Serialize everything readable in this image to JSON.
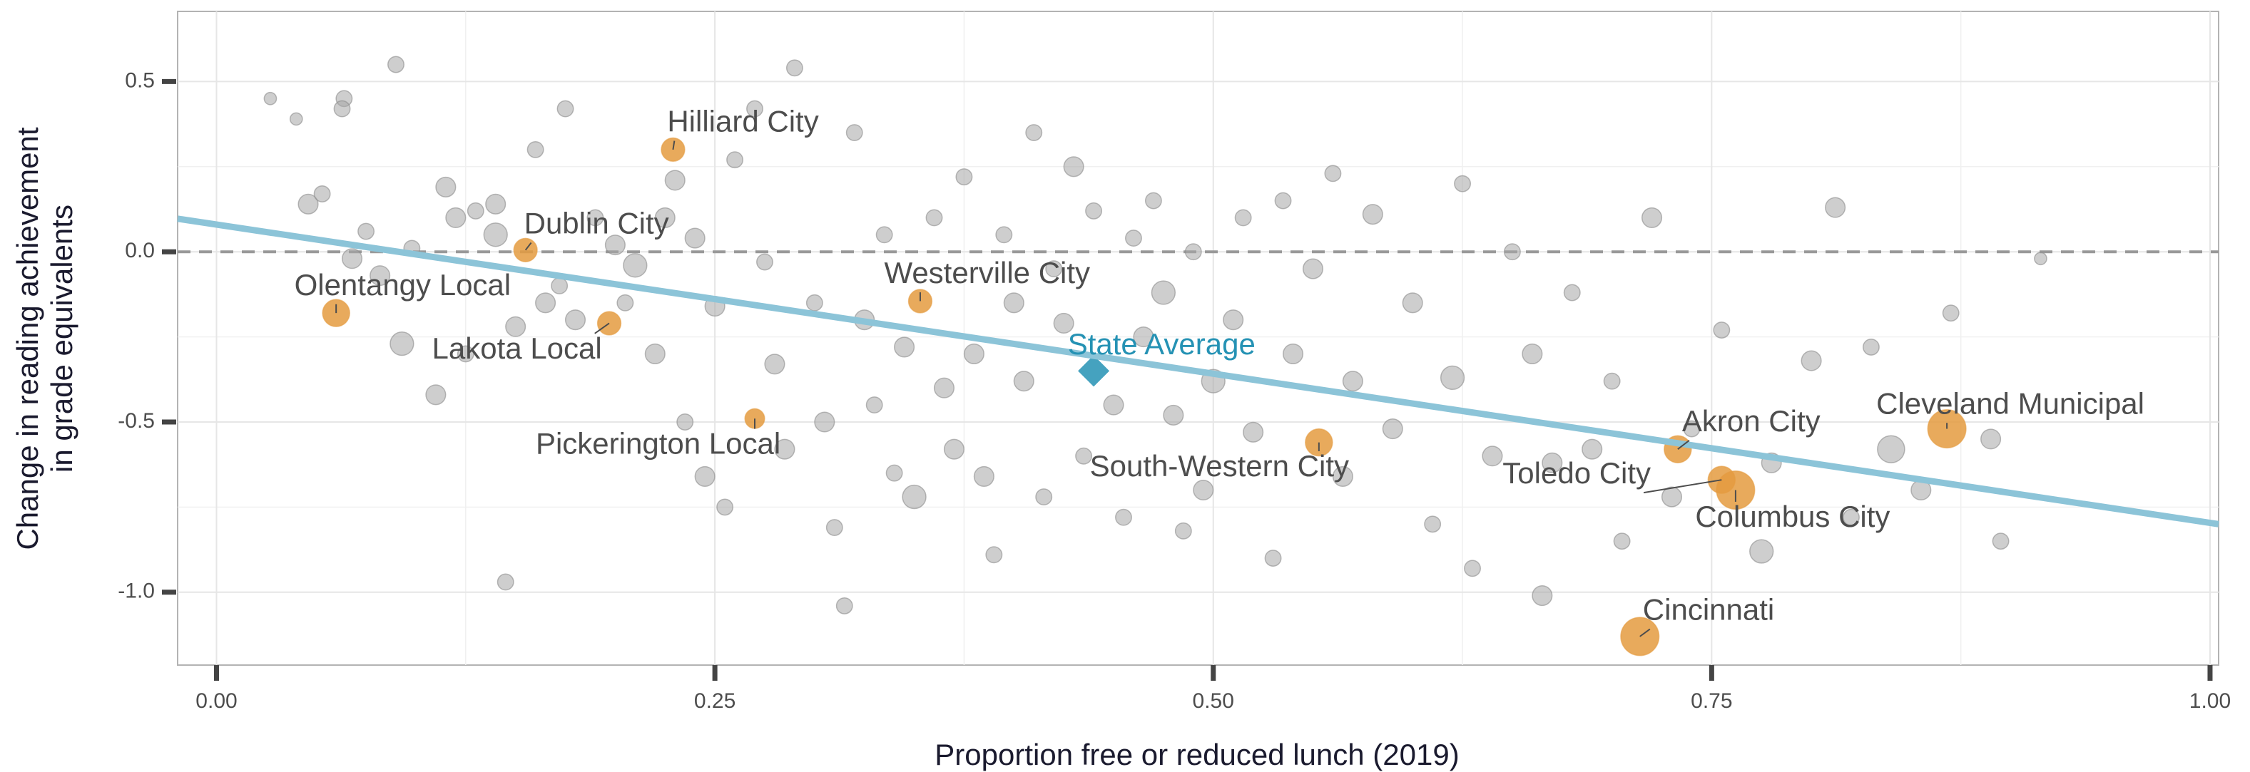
{
  "chart_data": {
    "type": "scatter",
    "xlabel": "Proportion free or reduced lunch (2019)",
    "ylabel": [
      "Change in reading  achievement",
      "in grade equivalents"
    ],
    "xlim": [
      -0.0195,
      1.0043
    ],
    "ylim": [
      -1.214,
      0.706
    ],
    "xticks": [
      {
        "value": 0,
        "label": "0.00"
      },
      {
        "value": 0.25,
        "label": "0.25"
      },
      {
        "value": 0.5,
        "label": "0.50"
      },
      {
        "value": 0.75,
        "label": "0.75"
      },
      {
        "value": 1,
        "label": "1.00"
      }
    ],
    "yticks": [
      0.5,
      {
        "value": 0,
        "label": "0.0"
      },
      -0.5,
      {
        "value": -1,
        "label": "-1.0"
      }
    ],
    "x_minor_ticks": [
      0.125,
      0.375,
      0.625,
      0.875
    ],
    "y_minor_ticks": [
      0.25,
      -0.25,
      -0.75
    ],
    "grid": true,
    "hline": {
      "y": 0,
      "color": "#999999"
    },
    "trend": {
      "color": "#8cc4d8",
      "x": [
        -0.0195,
        1.0043
      ],
      "y": [
        0.097,
        -0.8
      ]
    },
    "series": [
      {
        "color": "#a6a6a6",
        "marker": "circle",
        "x": [
          0.027,
          0.04,
          0.046,
          0.053,
          0.064,
          0.063,
          0.068,
          0.075,
          0.082,
          0.09,
          0.093,
          0.098,
          0.11,
          0.115,
          0.12,
          0.125,
          0.13,
          0.14,
          0.14,
          0.145,
          0.15,
          0.16,
          0.165,
          0.172,
          0.175,
          0.18,
          0.19,
          0.2,
          0.205,
          0.21,
          0.22,
          0.225,
          0.23,
          0.235,
          0.24,
          0.245,
          0.25,
          0.255,
          0.26,
          0.27,
          0.275,
          0.28,
          0.285,
          0.29,
          0.3,
          0.305,
          0.31,
          0.315,
          0.32,
          0.325,
          0.33,
          0.335,
          0.34,
          0.345,
          0.35,
          0.36,
          0.365,
          0.37,
          0.375,
          0.38,
          0.385,
          0.39,
          0.395,
          0.4,
          0.405,
          0.41,
          0.415,
          0.42,
          0.425,
          0.43,
          0.435,
          0.44,
          0.45,
          0.455,
          0.46,
          0.465,
          0.47,
          0.475,
          0.48,
          0.485,
          0.49,
          0.495,
          0.5,
          0.51,
          0.515,
          0.52,
          0.53,
          0.535,
          0.54,
          0.55,
          0.56,
          0.565,
          0.57,
          0.58,
          0.59,
          0.6,
          0.61,
          0.62,
          0.625,
          0.63,
          0.64,
          0.65,
          0.66,
          0.665,
          0.67,
          0.68,
          0.69,
          0.7,
          0.705,
          0.72,
          0.73,
          0.74,
          0.755,
          0.775,
          0.78,
          0.8,
          0.812,
          0.82,
          0.83,
          0.84,
          0.855,
          0.87,
          0.89,
          0.895,
          0.915
        ],
        "y": [
          0.45,
          0.39,
          0.14,
          0.17,
          0.45,
          0.42,
          -0.02,
          0.06,
          -0.07,
          0.55,
          -0.27,
          0.01,
          -0.42,
          0.19,
          0.1,
          -0.3,
          0.12,
          0.14,
          0.05,
          -0.97,
          -0.22,
          0.3,
          -0.15,
          -0.1,
          0.42,
          -0.2,
          0.1,
          0.02,
          -0.15,
          -0.04,
          -0.3,
          0.1,
          0.21,
          -0.5,
          0.04,
          -0.66,
          -0.16,
          -0.75,
          0.27,
          0.42,
          -0.03,
          -0.33,
          -0.58,
          0.54,
          -0.15,
          -0.5,
          -0.81,
          -1.04,
          0.35,
          -0.2,
          -0.45,
          0.05,
          -0.65,
          -0.28,
          -0.72,
          0.1,
          -0.4,
          -0.58,
          0.22,
          -0.3,
          -0.66,
          -0.89,
          0.05,
          -0.15,
          -0.38,
          0.35,
          -0.72,
          -0.05,
          -0.21,
          0.25,
          -0.6,
          0.12,
          -0.45,
          -0.78,
          0.04,
          -0.25,
          0.15,
          -0.12,
          -0.48,
          -0.82,
          0,
          -0.7,
          -0.38,
          -0.2,
          0.1,
          -0.53,
          -0.9,
          0.15,
          -0.3,
          -0.05,
          0.23,
          -0.66,
          -0.38,
          0.11,
          -0.52,
          -0.15,
          -0.8,
          -0.37,
          0.2,
          -0.93,
          -0.6,
          0,
          -0.3,
          -1.01,
          -0.62,
          -0.12,
          -0.58,
          -0.38,
          -0.85,
          0.1,
          -0.72,
          -0.52,
          -0.23,
          -0.88,
          -0.62,
          -0.32,
          0.13,
          -0.78,
          -0.28,
          -0.58,
          -0.7,
          -0.18,
          -0.55,
          -0.85,
          -0.02
        ],
        "sizes": [
          1,
          1,
          3,
          2,
          2,
          2,
          3,
          2,
          3,
          2,
          4,
          2,
          3,
          3,
          3,
          2,
          2,
          3,
          4,
          2,
          3,
          2,
          3,
          2,
          2,
          3,
          2,
          3,
          2,
          4,
          3,
          3,
          3,
          2,
          3,
          3,
          3,
          2,
          2,
          2,
          2,
          3,
          3,
          2,
          2,
          3,
          2,
          2,
          2,
          3,
          2,
          2,
          2,
          3,
          4,
          2,
          3,
          3,
          2,
          3,
          3,
          2,
          2,
          3,
          3,
          2,
          2,
          2,
          3,
          3,
          2,
          2,
          3,
          2,
          2,
          3,
          2,
          4,
          3,
          2,
          2,
          3,
          4,
          3,
          2,
          3,
          2,
          2,
          3,
          3,
          2,
          3,
          3,
          3,
          3,
          3,
          2,
          4,
          2,
          2,
          3,
          2,
          3,
          3,
          3,
          2,
          3,
          2,
          2,
          3,
          3,
          2,
          2,
          4,
          3,
          3,
          3,
          2,
          2,
          5,
          3,
          2,
          3,
          2,
          1
        ]
      },
      {
        "color": "#e49b3f",
        "marker": "circle",
        "label_color": "#4d4d4d",
        "labels": [
          "Hilliard City",
          "Dublin City",
          "Olentangy Local",
          "Lakota Local",
          "Pickerington Local",
          "Westerville City",
          "South-Western City",
          "Akron City",
          "Toledo City",
          "Columbus City",
          "Cleveland Municipal",
          "Cincinnati"
        ],
        "x": [
          0.229,
          0.155,
          0.06,
          0.197,
          0.27,
          0.353,
          0.553,
          0.733,
          0.755,
          0.762,
          0.868,
          0.714
        ],
        "y": [
          0.3,
          0.005,
          -0.18,
          -0.21,
          -0.49,
          -0.145,
          -0.56,
          -0.58,
          -0.67,
          -0.7,
          -0.52,
          -1.13
        ],
        "sizes": [
          4,
          4,
          5,
          4,
          3,
          4,
          5,
          5,
          5,
          8,
          8,
          8
        ]
      },
      {
        "color": "#2592b4",
        "marker": "diamond",
        "label_color": "#2592b4",
        "labels": [
          "State Average"
        ],
        "x": [
          0.44
        ],
        "y": [
          -0.35
        ]
      }
    ]
  }
}
